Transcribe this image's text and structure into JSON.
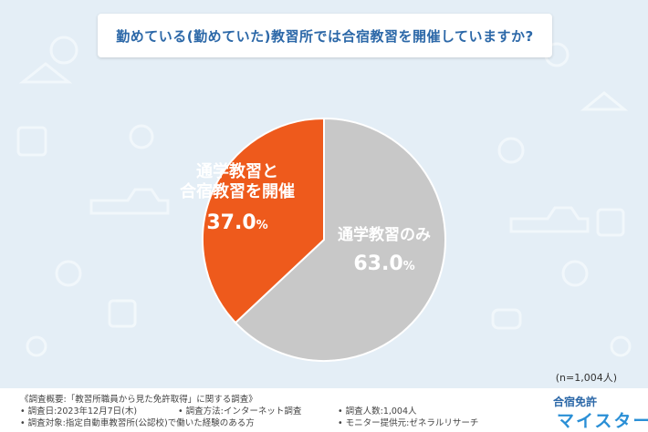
{
  "title": "勤めている(勤めていた)教習所では合宿教習を開催していますか?",
  "chart_data": {
    "type": "pie",
    "slices": [
      {
        "label": "通学教習のみ",
        "value": 63.0,
        "percent_text": "63.0%",
        "color": "#c8c8c8"
      },
      {
        "label": "通学教習と合宿教習を開催",
        "value": 37.0,
        "percent_text": "37.0%",
        "color": "#ee5a1c"
      }
    ],
    "start": "top, clockwise"
  },
  "labels": {
    "orange_line1": "通学教習と",
    "orange_line2": "合宿教習を開催",
    "orange_pct_main": "37.0",
    "orange_pct_unit": "%",
    "gray_line1": "通学教習のみ",
    "gray_pct_main": "63.0",
    "gray_pct_unit": "%"
  },
  "n_label": "(n=1,004人)",
  "footer": {
    "survey_title": "《調査概要:「教習所職員から見た免許取得」に関する調査》",
    "date": "• 調査日:2023年12月7日(木)",
    "method": "• 調査方法:インターネット調査",
    "people": "• 調査人数:1,004人",
    "target": "• 調査対象:指定自動車教習所(公認校)で働いた経験のある方",
    "monitor": "• モニター提供元:ゼネラルリサーチ"
  },
  "logo": {
    "top": "合宿免許",
    "main": "マイスター"
  }
}
